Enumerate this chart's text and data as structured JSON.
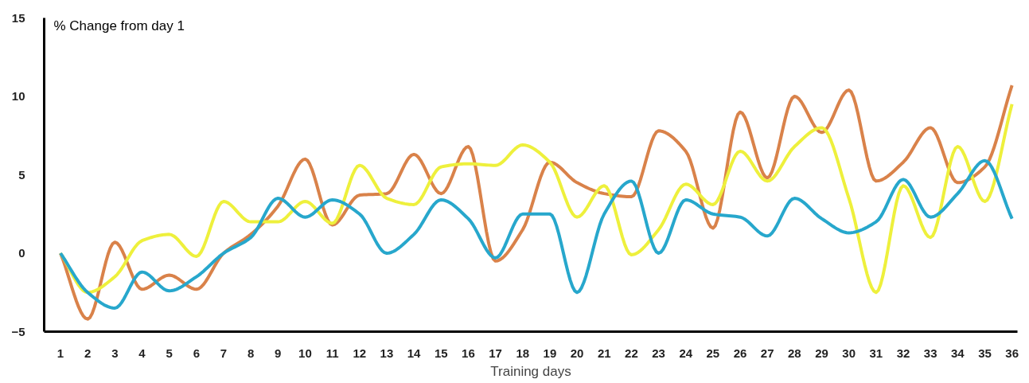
{
  "chart_data": {
    "type": "line",
    "xlabel": "Training days",
    "ylabel": "% Change from day 1",
    "x": [
      1,
      2,
      3,
      4,
      5,
      6,
      7,
      8,
      9,
      10,
      11,
      12,
      13,
      14,
      15,
      16,
      17,
      18,
      19,
      20,
      21,
      22,
      23,
      24,
      25,
      26,
      27,
      28,
      29,
      30,
      31,
      32,
      33,
      34,
      35,
      36
    ],
    "series": [
      {
        "color": "#d9824a",
        "values": [
          0,
          -4.2,
          0.7,
          -2.3,
          -1.4,
          -2.3,
          0,
          1.2,
          3,
          6,
          1.8,
          3.7,
          3.8,
          6.3,
          3.8,
          6.8,
          -0.5,
          1.5,
          5.8,
          4.5,
          3.8,
          3.6,
          7.8,
          6.5,
          1.6,
          9,
          4.8,
          10,
          7.7,
          10.4,
          4.6,
          5.8,
          8,
          4.5,
          5.5,
          10.7
        ]
      },
      {
        "color": "#eef03c",
        "values": [
          0,
          -2.5,
          -1.5,
          0.8,
          1.2,
          -0.2,
          3.3,
          2,
          2,
          3.3,
          1.9,
          5.6,
          3.5,
          3.1,
          5.5,
          5.7,
          5.6,
          6.9,
          5.8,
          2.3,
          4.3,
          -0.1,
          1.5,
          4.4,
          3.1,
          6.5,
          4.6,
          6.8,
          8,
          3.5,
          -2.5,
          4.3,
          1,
          6.8,
          3.3,
          9.5
        ]
      },
      {
        "color": "#27a7cc",
        "values": [
          0,
          -2.5,
          -3.5,
          -1.2,
          -2.4,
          -1.5,
          0,
          1,
          3.5,
          2.3,
          3.4,
          2.5,
          0,
          1.2,
          3.4,
          2.2,
          -0.3,
          2.5,
          2.5,
          -2.5,
          2.5,
          4.6,
          0,
          3.4,
          2.5,
          2.3,
          1.1,
          3.5,
          2.2,
          1.3,
          2,
          4.7,
          2.3,
          3.8,
          5.9,
          2.2
        ]
      }
    ],
    "xlim": [
      0.4,
      36.2
    ],
    "ylim": [
      -5,
      15
    ],
    "xticks": [
      1,
      2,
      3,
      4,
      5,
      6,
      7,
      8,
      9,
      10,
      11,
      12,
      13,
      14,
      15,
      16,
      17,
      18,
      19,
      20,
      21,
      22,
      23,
      24,
      25,
      26,
      27,
      28,
      29,
      30,
      31,
      32,
      33,
      34,
      35,
      36
    ],
    "yticks": [
      -5,
      0,
      5,
      10,
      15
    ],
    "grid": false,
    "marker": "none",
    "line_style": "solid"
  }
}
